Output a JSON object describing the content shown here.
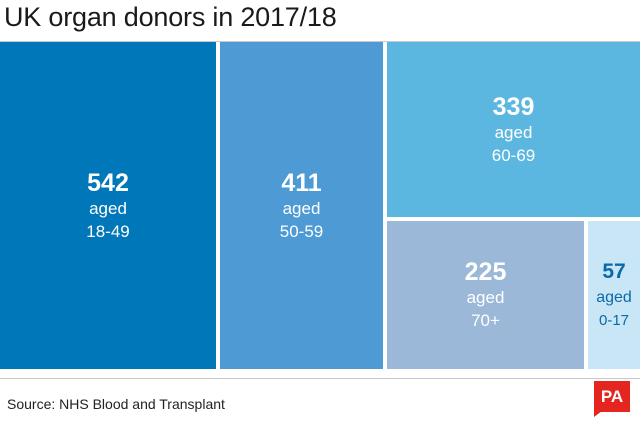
{
  "title": "UK organ donors in 2017/18",
  "source": "Source: NHS Blood and Transplant",
  "logo_text": "PA",
  "chart_data": {
    "type": "treemap",
    "title": "UK organ donors in 2017/18",
    "items": [
      {
        "value": 542,
        "label1": "aged",
        "label2": "18-49",
        "color": "#0077b8",
        "text_color": "#ffffff"
      },
      {
        "value": 411,
        "label1": "aged",
        "label2": "50-59",
        "color": "#4d9ad4",
        "text_color": "#ffffff"
      },
      {
        "value": 339,
        "label1": "aged",
        "label2": "60-69",
        "color": "#5bb6e0",
        "text_color": "#ffffff"
      },
      {
        "value": 225,
        "label1": "aged",
        "label2": "70+",
        "color": "#9bb8d8",
        "text_color": "#ffffff"
      },
      {
        "value": 57,
        "label1": "aged",
        "label2": "0-17",
        "color": "#c8e6f5",
        "text_color": "#0a6aa8"
      }
    ]
  }
}
